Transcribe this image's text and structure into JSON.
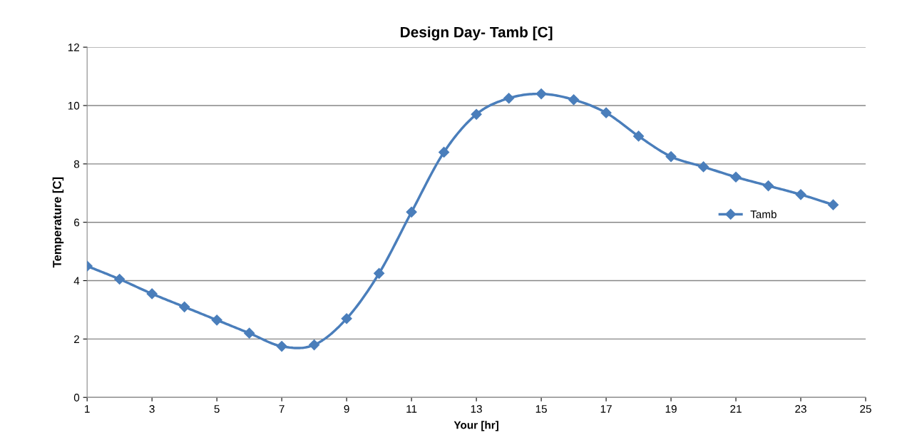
{
  "chart_data": {
    "type": "line",
    "title": "Design Day- Tamb [C]",
    "xlabel": "Your [hr]",
    "ylabel": "Temperature [C]",
    "x": [
      1,
      2,
      3,
      4,
      5,
      6,
      7,
      8,
      9,
      10,
      11,
      12,
      13,
      14,
      15,
      16,
      17,
      18,
      19,
      20,
      21,
      22,
      23,
      24
    ],
    "series": [
      {
        "name": "Tamb",
        "color": "#4a7ebb",
        "values": [
          4.5,
          4.05,
          3.55,
          3.1,
          2.65,
          2.2,
          1.75,
          1.8,
          2.7,
          4.25,
          6.35,
          8.4,
          9.7,
          10.25,
          10.4,
          10.2,
          9.75,
          8.95,
          8.25,
          7.9,
          7.55,
          7.25,
          6.95,
          6.6
        ]
      }
    ],
    "xlim": [
      1,
      25
    ],
    "xticks": [
      1,
      3,
      5,
      7,
      9,
      11,
      13,
      15,
      17,
      19,
      21,
      23,
      25
    ],
    "ylim": [
      0,
      12
    ],
    "yticks": [
      0,
      2,
      4,
      6,
      8,
      10,
      12
    ],
    "grid": "y",
    "legend": "right",
    "marker": "diamond",
    "line_style": "solid"
  }
}
